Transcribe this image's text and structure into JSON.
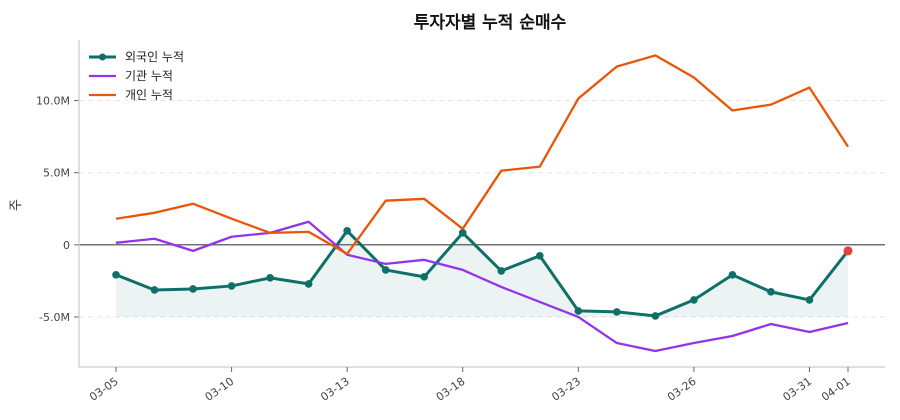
{
  "chart_data": {
    "type": "line",
    "title": "투자자별 누적 순매수",
    "xlabel": "",
    "ylabel": "주",
    "x": [
      0,
      1,
      2,
      3,
      4,
      5,
      6,
      7,
      8,
      9,
      10,
      11,
      12,
      13,
      14,
      15,
      16,
      17,
      18,
      19
    ],
    "xticks": [
      {
        "index": 0,
        "label": "03-05"
      },
      {
        "index": 3,
        "label": "03-10"
      },
      {
        "index": 6,
        "label": "03-13"
      },
      {
        "index": 9,
        "label": "03-18"
      },
      {
        "index": 12,
        "label": "03-23"
      },
      {
        "index": 15,
        "label": "03-26"
      },
      {
        "index": 18,
        "label": "03-31"
      },
      {
        "index": 19,
        "label": "04-01"
      }
    ],
    "yticks": [
      {
        "value": -5000000,
        "label": "-5.0M"
      },
      {
        "value": 0,
        "label": "0"
      },
      {
        "value": 5000000,
        "label": "5.0M"
      },
      {
        "value": 10000000,
        "label": "10.0M"
      }
    ],
    "ylim": [
      -8470000,
      14200000
    ],
    "grid": "y-dashed",
    "legend_position": "top-left",
    "zero_line": true,
    "fill_baseline": -5000000,
    "series": [
      {
        "name": "외국인 누적",
        "color": "#0f7068",
        "markers": true,
        "fill": true,
        "last_marker_color": "#e8413c",
        "values": [
          -2080000,
          -3130000,
          -3060000,
          -2850000,
          -2290000,
          -2710000,
          970000,
          -1740000,
          -2220000,
          830000,
          -1810000,
          -760000,
          -4580000,
          -4650000,
          -4930000,
          -3820000,
          -2080000,
          -3260000,
          -3820000,
          -420000
        ]
      },
      {
        "name": "기관 누적",
        "color": "#9333ea",
        "markers": false,
        "values": [
          140000,
          420000,
          -420000,
          560000,
          830000,
          1600000,
          -690000,
          -1320000,
          -1040000,
          -1740000,
          -2920000,
          -3960000,
          -5000000,
          -6810000,
          -7360000,
          -6810000,
          -6320000,
          -5490000,
          -6040000,
          -5420000
        ]
      },
      {
        "name": "개인 누적",
        "color": "#ea5507",
        "markers": false,
        "values": [
          1810000,
          2220000,
          2850000,
          1810000,
          830000,
          900000,
          -630000,
          3060000,
          3190000,
          1110000,
          5140000,
          5420000,
          10140000,
          12360000,
          13130000,
          11600000,
          9310000,
          9720000,
          10900000,
          6810000
        ]
      }
    ]
  }
}
